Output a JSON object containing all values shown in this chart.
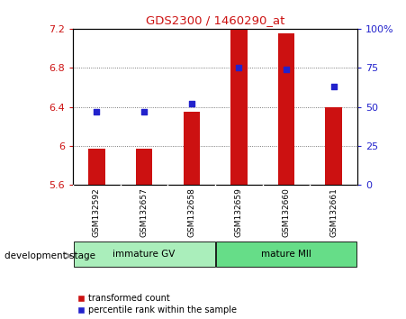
{
  "title": "GDS2300 / 1460290_at",
  "categories": [
    "GSM132592",
    "GSM132657",
    "GSM132658",
    "GSM132659",
    "GSM132660",
    "GSM132661"
  ],
  "bar_values": [
    5.97,
    5.97,
    6.35,
    7.19,
    7.15,
    6.4
  ],
  "bar_baseline": 5.6,
  "bar_color": "#cc1111",
  "percentile_values": [
    47,
    47,
    52,
    75,
    74,
    63
  ],
  "dot_color": "#2222cc",
  "ylim_left": [
    5.6,
    7.2
  ],
  "ylim_right": [
    0,
    100
  ],
  "yticks_left": [
    5.6,
    6.0,
    6.4,
    6.8,
    7.2
  ],
  "yticks_right": [
    0,
    25,
    50,
    75,
    100
  ],
  "ytick_labels_right": [
    "0",
    "25",
    "50",
    "75",
    "100%"
  ],
  "ytick_labels_left": [
    "5.6",
    "6",
    "6.4",
    "6.8",
    "7.2"
  ],
  "group_labels": [
    "immature GV",
    "mature MII"
  ],
  "group_ranges": [
    [
      0,
      3
    ],
    [
      3,
      6
    ]
  ],
  "group_colors": [
    "#aaeebb",
    "#66dd88"
  ],
  "xlabel": "development stage",
  "bg_plot": "#ffffff",
  "bg_labels": "#cccccc",
  "legend_bar_label": "transformed count",
  "legend_dot_label": "percentile rank within the sample",
  "dotted_line_color": "#555555",
  "title_color": "#cc1111",
  "left_tick_color": "#cc1111",
  "right_tick_color": "#2222cc",
  "bar_width": 0.35
}
